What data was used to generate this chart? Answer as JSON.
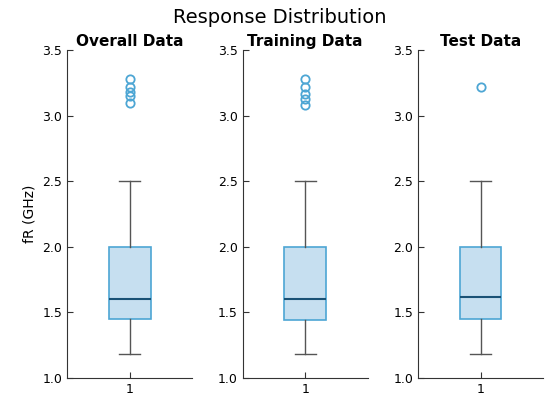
{
  "title": "Response Distribution",
  "subplot_titles": [
    "Overall Data",
    "Training Data",
    "Test Data"
  ],
  "ylabel": "fR (GHz)",
  "xlabel": "1",
  "ylim": [
    1.0,
    3.5
  ],
  "yticks": [
    1.0,
    1.5,
    2.0,
    2.5,
    3.0,
    3.5
  ],
  "box_facecolor": "#c6dff0",
  "box_edgecolor": "#4da6d4",
  "median_color": "#1a5276",
  "whisker_color": "#555555",
  "cap_color": "#555555",
  "outlier_color": "#4da6d4",
  "overall": {
    "q1": 1.45,
    "median": 1.6,
    "q3": 2.0,
    "whislo": 1.18,
    "whishi": 2.5,
    "fliers": [
      3.1,
      3.15,
      3.18,
      3.22,
      3.28
    ]
  },
  "training": {
    "q1": 1.44,
    "median": 1.6,
    "q3": 2.0,
    "whislo": 1.18,
    "whishi": 2.5,
    "fliers": [
      3.08,
      3.13,
      3.17,
      3.22,
      3.28
    ]
  },
  "test": {
    "q1": 1.45,
    "median": 1.62,
    "q3": 2.0,
    "whislo": 1.18,
    "whishi": 2.5,
    "fliers": [
      3.22
    ]
  },
  "title_fontsize": 14,
  "subplot_title_fontsize": 11,
  "axis_fontsize": 10,
  "tick_fontsize": 9,
  "figsize": [
    5.6,
    4.2
  ],
  "dpi": 100
}
